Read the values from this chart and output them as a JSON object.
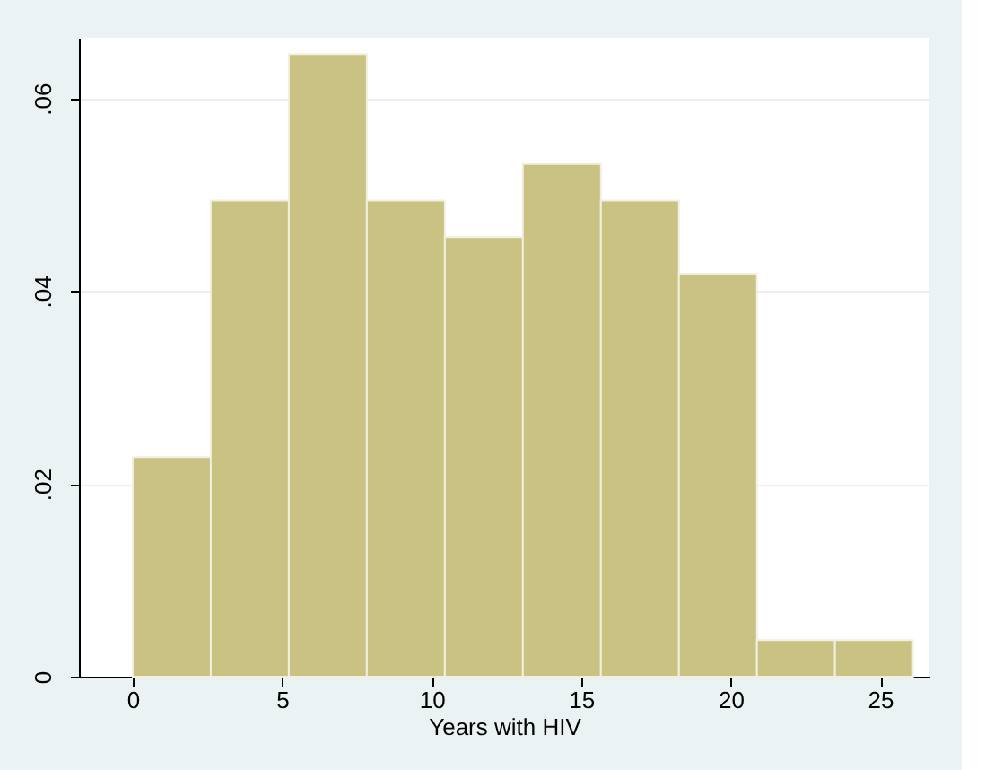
{
  "chart_data": {
    "type": "histogram",
    "xlabel": "Years with HIV",
    "bins": [
      0,
      2.61,
      5.22,
      7.83,
      10.44,
      13.05,
      15.66,
      18.27,
      20.88,
      23.49,
      26.1
    ],
    "values": [
      0.0228,
      0.0494,
      0.0646,
      0.0494,
      0.0456,
      0.0532,
      0.0494,
      0.0418,
      0.0038,
      0.0038
    ],
    "color": "#c9c282",
    "xlim": [
      -1.8,
      26.65
    ],
    "xticks": [
      0,
      5,
      10,
      15,
      20,
      25
    ],
    "ylim": [
      0,
      0.0663
    ],
    "yticks": [
      0,
      {
        "value": 0.02,
        "label": ".02"
      },
      {
        "value": 0.04,
        "label": ".04"
      },
      {
        "value": 0.06,
        "label": ".06"
      }
    ],
    "grid": "y"
  }
}
